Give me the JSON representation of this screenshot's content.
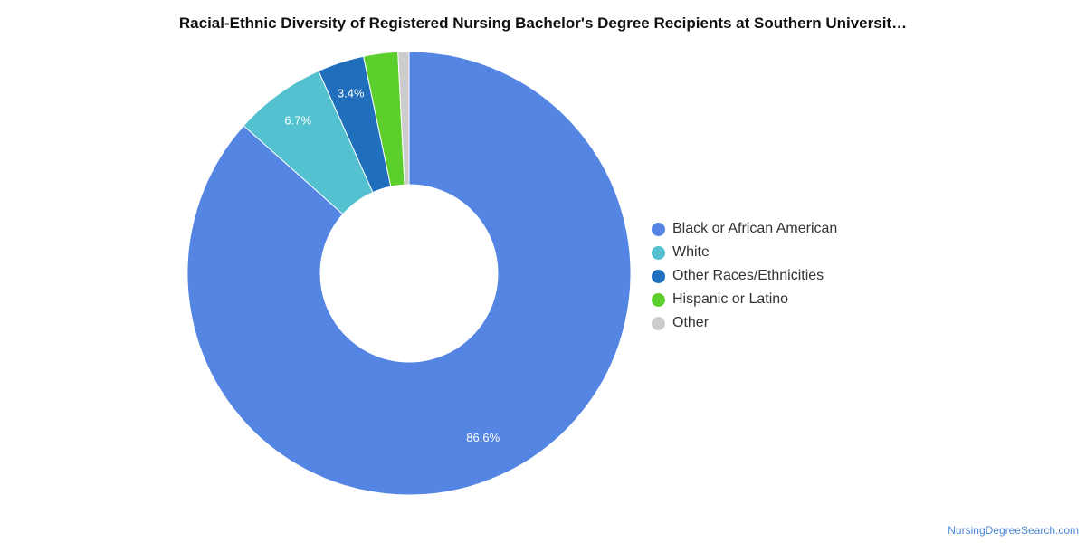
{
  "chart_data": {
    "type": "pie",
    "title": "Racial-Ethnic Diversity of Registered Nursing Bachelor's Degree Recipients at Southern Universit…",
    "donut": true,
    "start_angle_deg": 0,
    "legend_position": "right",
    "slices": [
      {
        "name": "Black or African American",
        "value": 86.6,
        "label": "86.6%",
        "color": "#5585e3"
      },
      {
        "name": "White",
        "value": 6.7,
        "label": "6.7%",
        "color": "#53c1cf"
      },
      {
        "name": "Other Races/Ethnicities",
        "value": 3.4,
        "label": "3.4%",
        "color": "#1f6fbd"
      },
      {
        "name": "Hispanic or Latino",
        "value": 2.5,
        "label": "",
        "color": "#5ccf2c"
      },
      {
        "name": "Other",
        "value": 0.8,
        "label": "",
        "color": "#cccccc"
      }
    ]
  },
  "source": "NursingDegreeSearch.com"
}
